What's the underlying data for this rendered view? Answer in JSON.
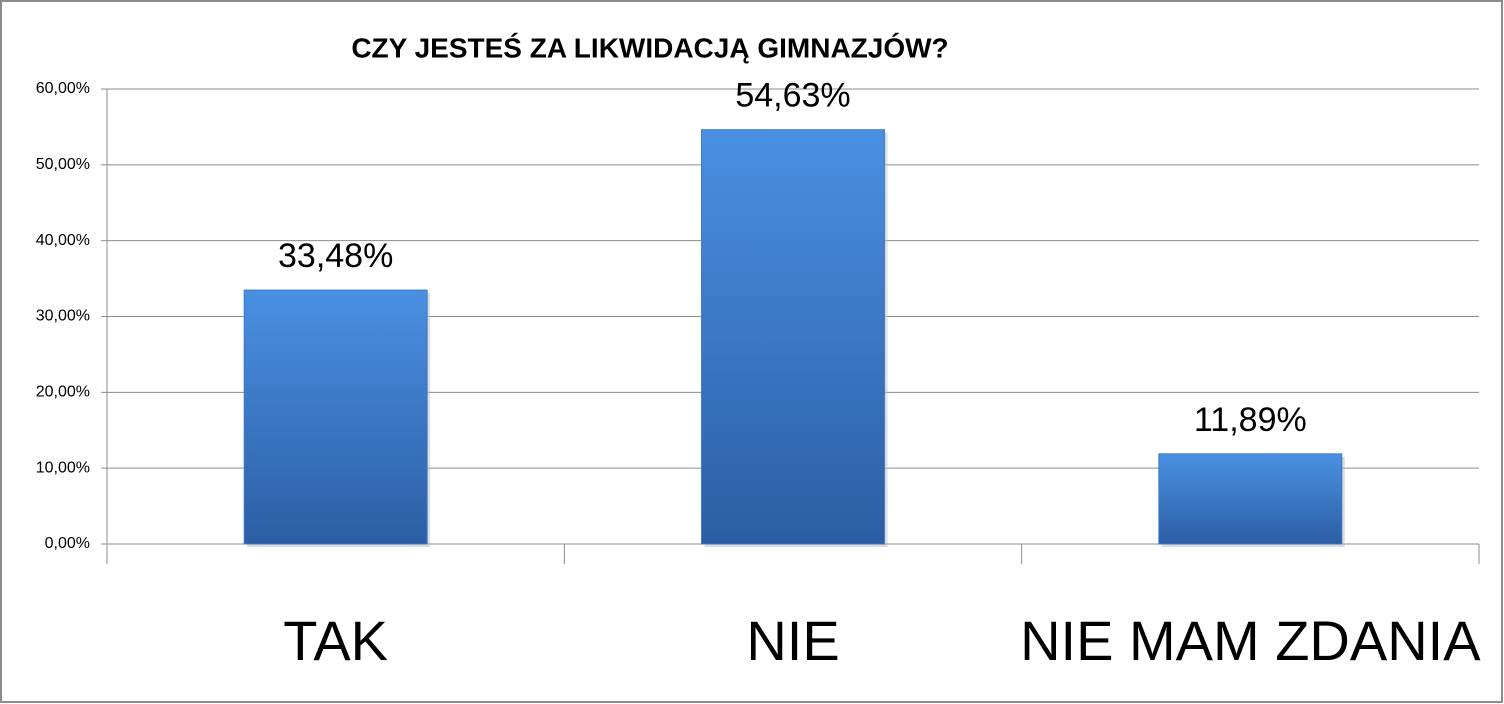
{
  "chart_data": {
    "type": "bar",
    "title": "CZY JESTEŚ ZA LIKWIDACJĄ GIMNAZJÓW?",
    "categories": [
      "TAK",
      "NIE",
      "NIE MAM ZDANIA"
    ],
    "values": [
      33.48,
      54.63,
      11.89
    ],
    "value_labels": [
      "33,48%",
      "54,63%",
      "11,89%"
    ],
    "color": "#3a78c8",
    "ylim": [
      0,
      60
    ],
    "yticks": [
      {
        "value": 0,
        "label": "0,00%"
      },
      {
        "value": 10,
        "label": "10,00%"
      },
      {
        "value": 20,
        "label": "20,00%"
      },
      {
        "value": 30,
        "label": "30,00%"
      },
      {
        "value": 40,
        "label": "40,00%"
      },
      {
        "value": 50,
        "label": "50,00%"
      },
      {
        "value": 60,
        "label": "60,00%"
      }
    ],
    "grid": true
  }
}
